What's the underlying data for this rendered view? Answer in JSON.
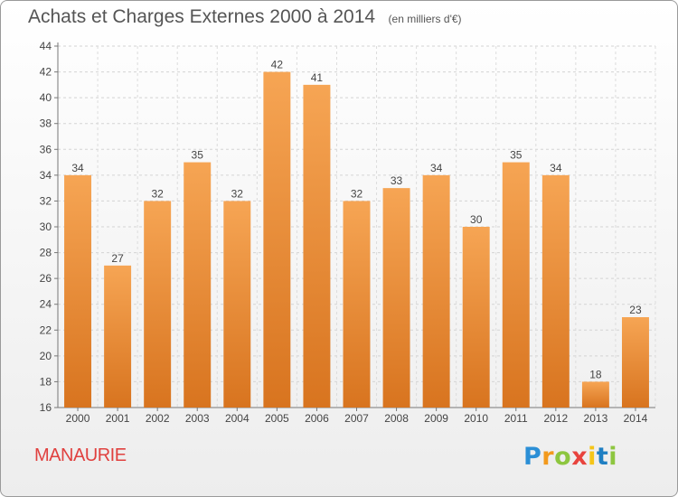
{
  "title": "Achats et Charges Externes 2000 à 2014",
  "unit": "(en milliers d'€)",
  "commune": "MANAURIE",
  "logo": {
    "text": "Proxiti",
    "letters": [
      "P",
      "r",
      "o",
      "x",
      "i",
      "t",
      "i"
    ]
  },
  "colors": {
    "bar_light": "#f6a554",
    "bar_dark": "#d8741f",
    "commune_text": "#e0413f",
    "axis_text": "#444444"
  },
  "chart_data": {
    "type": "bar",
    "categories": [
      "2000",
      "2001",
      "2002",
      "2003",
      "2004",
      "2005",
      "2006",
      "2007",
      "2008",
      "2009",
      "2010",
      "2011",
      "2012",
      "2013",
      "2014"
    ],
    "values": [
      34,
      27,
      32,
      35,
      32,
      42,
      41,
      32,
      33,
      34,
      30,
      35,
      34,
      18,
      23
    ],
    "ylim": [
      16,
      44
    ],
    "yticks": [
      16,
      18,
      20,
      22,
      24,
      26,
      28,
      30,
      32,
      34,
      36,
      38,
      40,
      42,
      44
    ],
    "grid": true
  }
}
